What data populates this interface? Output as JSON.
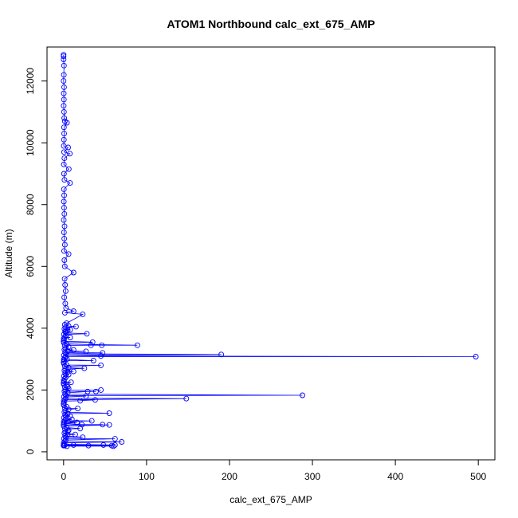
{
  "chart_data": {
    "type": "line",
    "title": "ATOM1 Northbound calc_ext_675_AMP",
    "xlabel": "calc_ext_675_AMP",
    "ylabel": "Altitude (m)",
    "xlim": [
      -20,
      520
    ],
    "ylim": [
      -260,
      13100
    ],
    "xticks": [
      0,
      100,
      200,
      300,
      400,
      500
    ],
    "yticks": [
      0,
      2000,
      4000,
      6000,
      8000,
      10000,
      12000
    ],
    "grid": false,
    "marker": "open-circle",
    "line_color": "#0000ff",
    "series": [
      {
        "points": [
          [
            0,
            12850
          ],
          [
            0,
            12800
          ],
          [
            0,
            12700
          ],
          [
            0.5,
            12500
          ],
          [
            0.3,
            12200
          ],
          [
            0,
            12000
          ],
          [
            0.6,
            11800
          ],
          [
            0.2,
            11600
          ],
          [
            0.4,
            11400
          ],
          [
            0.1,
            11200
          ],
          [
            0.5,
            11000
          ],
          [
            0.8,
            10800
          ],
          [
            1.5,
            10700
          ],
          [
            4,
            10650
          ],
          [
            0.5,
            10500
          ],
          [
            0.7,
            10300
          ],
          [
            0.4,
            10100
          ],
          [
            0.2,
            9900
          ],
          [
            5.5,
            9850
          ],
          [
            0.6,
            9700
          ],
          [
            7.5,
            9650
          ],
          [
            0.9,
            9500
          ],
          [
            0.3,
            9300
          ],
          [
            6.2,
            9150
          ],
          [
            0.5,
            9000
          ],
          [
            1,
            8800
          ],
          [
            7.8,
            8700
          ],
          [
            0.4,
            8500
          ],
          [
            0.7,
            8300
          ],
          [
            0.3,
            8100
          ],
          [
            0.6,
            7900
          ],
          [
            0.9,
            7700
          ],
          [
            0.2,
            7500
          ],
          [
            1.1,
            7300
          ],
          [
            0.5,
            7100
          ],
          [
            0.8,
            6900
          ],
          [
            1.5,
            6700
          ],
          [
            0.6,
            6500
          ],
          [
            6,
            6400
          ],
          [
            0.9,
            6200
          ],
          [
            1.4,
            6000
          ],
          [
            12,
            5800
          ],
          [
            1.2,
            5600
          ],
          [
            1.8,
            5400
          ],
          [
            2.5,
            5200
          ],
          [
            0.8,
            5000
          ],
          [
            2,
            4800
          ],
          [
            3,
            4650
          ],
          [
            12,
            4550
          ],
          [
            1.5,
            4500
          ],
          [
            23,
            4450
          ],
          [
            497,
            3080
          ],
          [
            190,
            3150
          ],
          [
            89,
            3450
          ],
          [
            46,
            3450
          ],
          [
            35,
            3550
          ],
          [
            8,
            3700
          ],
          [
            2.8,
            3900
          ],
          [
            15,
            4050
          ],
          [
            8,
            3950
          ],
          [
            28,
            3820
          ],
          [
            33,
            3450
          ],
          [
            45,
            3100
          ],
          [
            12,
            3300
          ],
          [
            27,
            3250
          ],
          [
            36,
            2950
          ],
          [
            4,
            3000
          ],
          [
            25,
            2700
          ],
          [
            45,
            2800
          ],
          [
            47,
            3200
          ],
          [
            6,
            2500
          ],
          [
            12,
            2600
          ],
          [
            9,
            2250
          ],
          [
            5,
            2100
          ],
          [
            2,
            2000
          ],
          [
            45,
            2000
          ],
          [
            39,
            1950
          ],
          [
            29,
            1950
          ],
          [
            148,
            1720
          ],
          [
            27,
            1800
          ],
          [
            20,
            1650
          ],
          [
            38,
            1680
          ],
          [
            17,
            1400
          ],
          [
            55,
            1250
          ],
          [
            8,
            1150
          ],
          [
            10,
            1050
          ],
          [
            16,
            950
          ],
          [
            22,
            880
          ],
          [
            34,
            1000
          ],
          [
            47,
            880
          ],
          [
            288,
            1830
          ],
          [
            55,
            870
          ],
          [
            20,
            750
          ],
          [
            5,
            680
          ],
          [
            14,
            560
          ],
          [
            23,
            470
          ],
          [
            62,
            420
          ],
          [
            70,
            320
          ],
          [
            62,
            220
          ],
          [
            60,
            180
          ],
          [
            58,
            200
          ],
          [
            48,
            220
          ],
          [
            30,
            200
          ],
          [
            12,
            220
          ],
          [
            4,
            180
          ],
          [
            1,
            200
          ],
          [
            0,
            220
          ]
        ],
        "dense_column": {
          "x": [
            0,
            0.6,
            0.2,
            1.2,
            2.5,
            0.4,
            3,
            1.8,
            5,
            0.9,
            2.2,
            6,
            1.4,
            3.6,
            0.3
          ],
          "y_start": 200,
          "y_end": 4200,
          "y_step": 45
        }
      }
    ]
  }
}
